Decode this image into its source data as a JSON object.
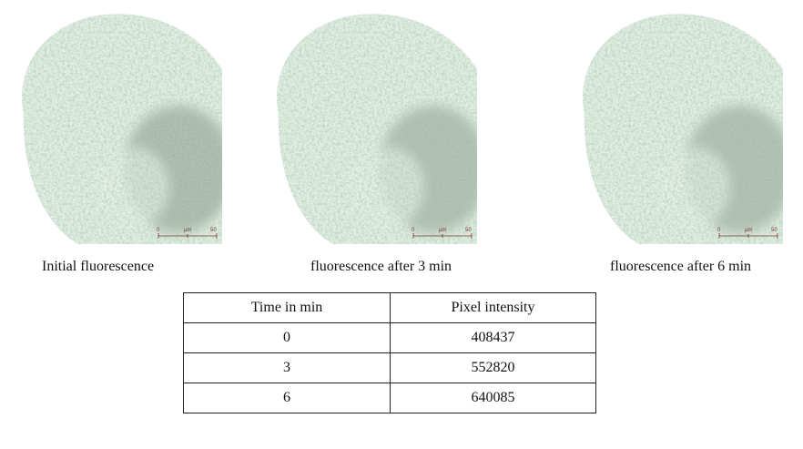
{
  "panels": [
    {
      "caption": "Initial fluorescence",
      "scale": {
        "start": "0",
        "unit": "µm",
        "end": "50"
      }
    },
    {
      "caption": "fluorescence after 3 min",
      "scale": {
        "start": "0",
        "unit": "µm",
        "end": "50"
      }
    },
    {
      "caption": "fluorescence after 6 min",
      "scale": {
        "start": "0",
        "unit": "µm",
        "end": "50"
      }
    }
  ],
  "table": {
    "headers": [
      "Time in min",
      "Pixel intensity"
    ],
    "rows": [
      [
        "0",
        "408437"
      ],
      [
        "3",
        "552820"
      ],
      [
        "6",
        "640085"
      ]
    ]
  },
  "colors": {
    "fluorescence": "#6fbf7e",
    "tissue": "#9aa39c"
  }
}
